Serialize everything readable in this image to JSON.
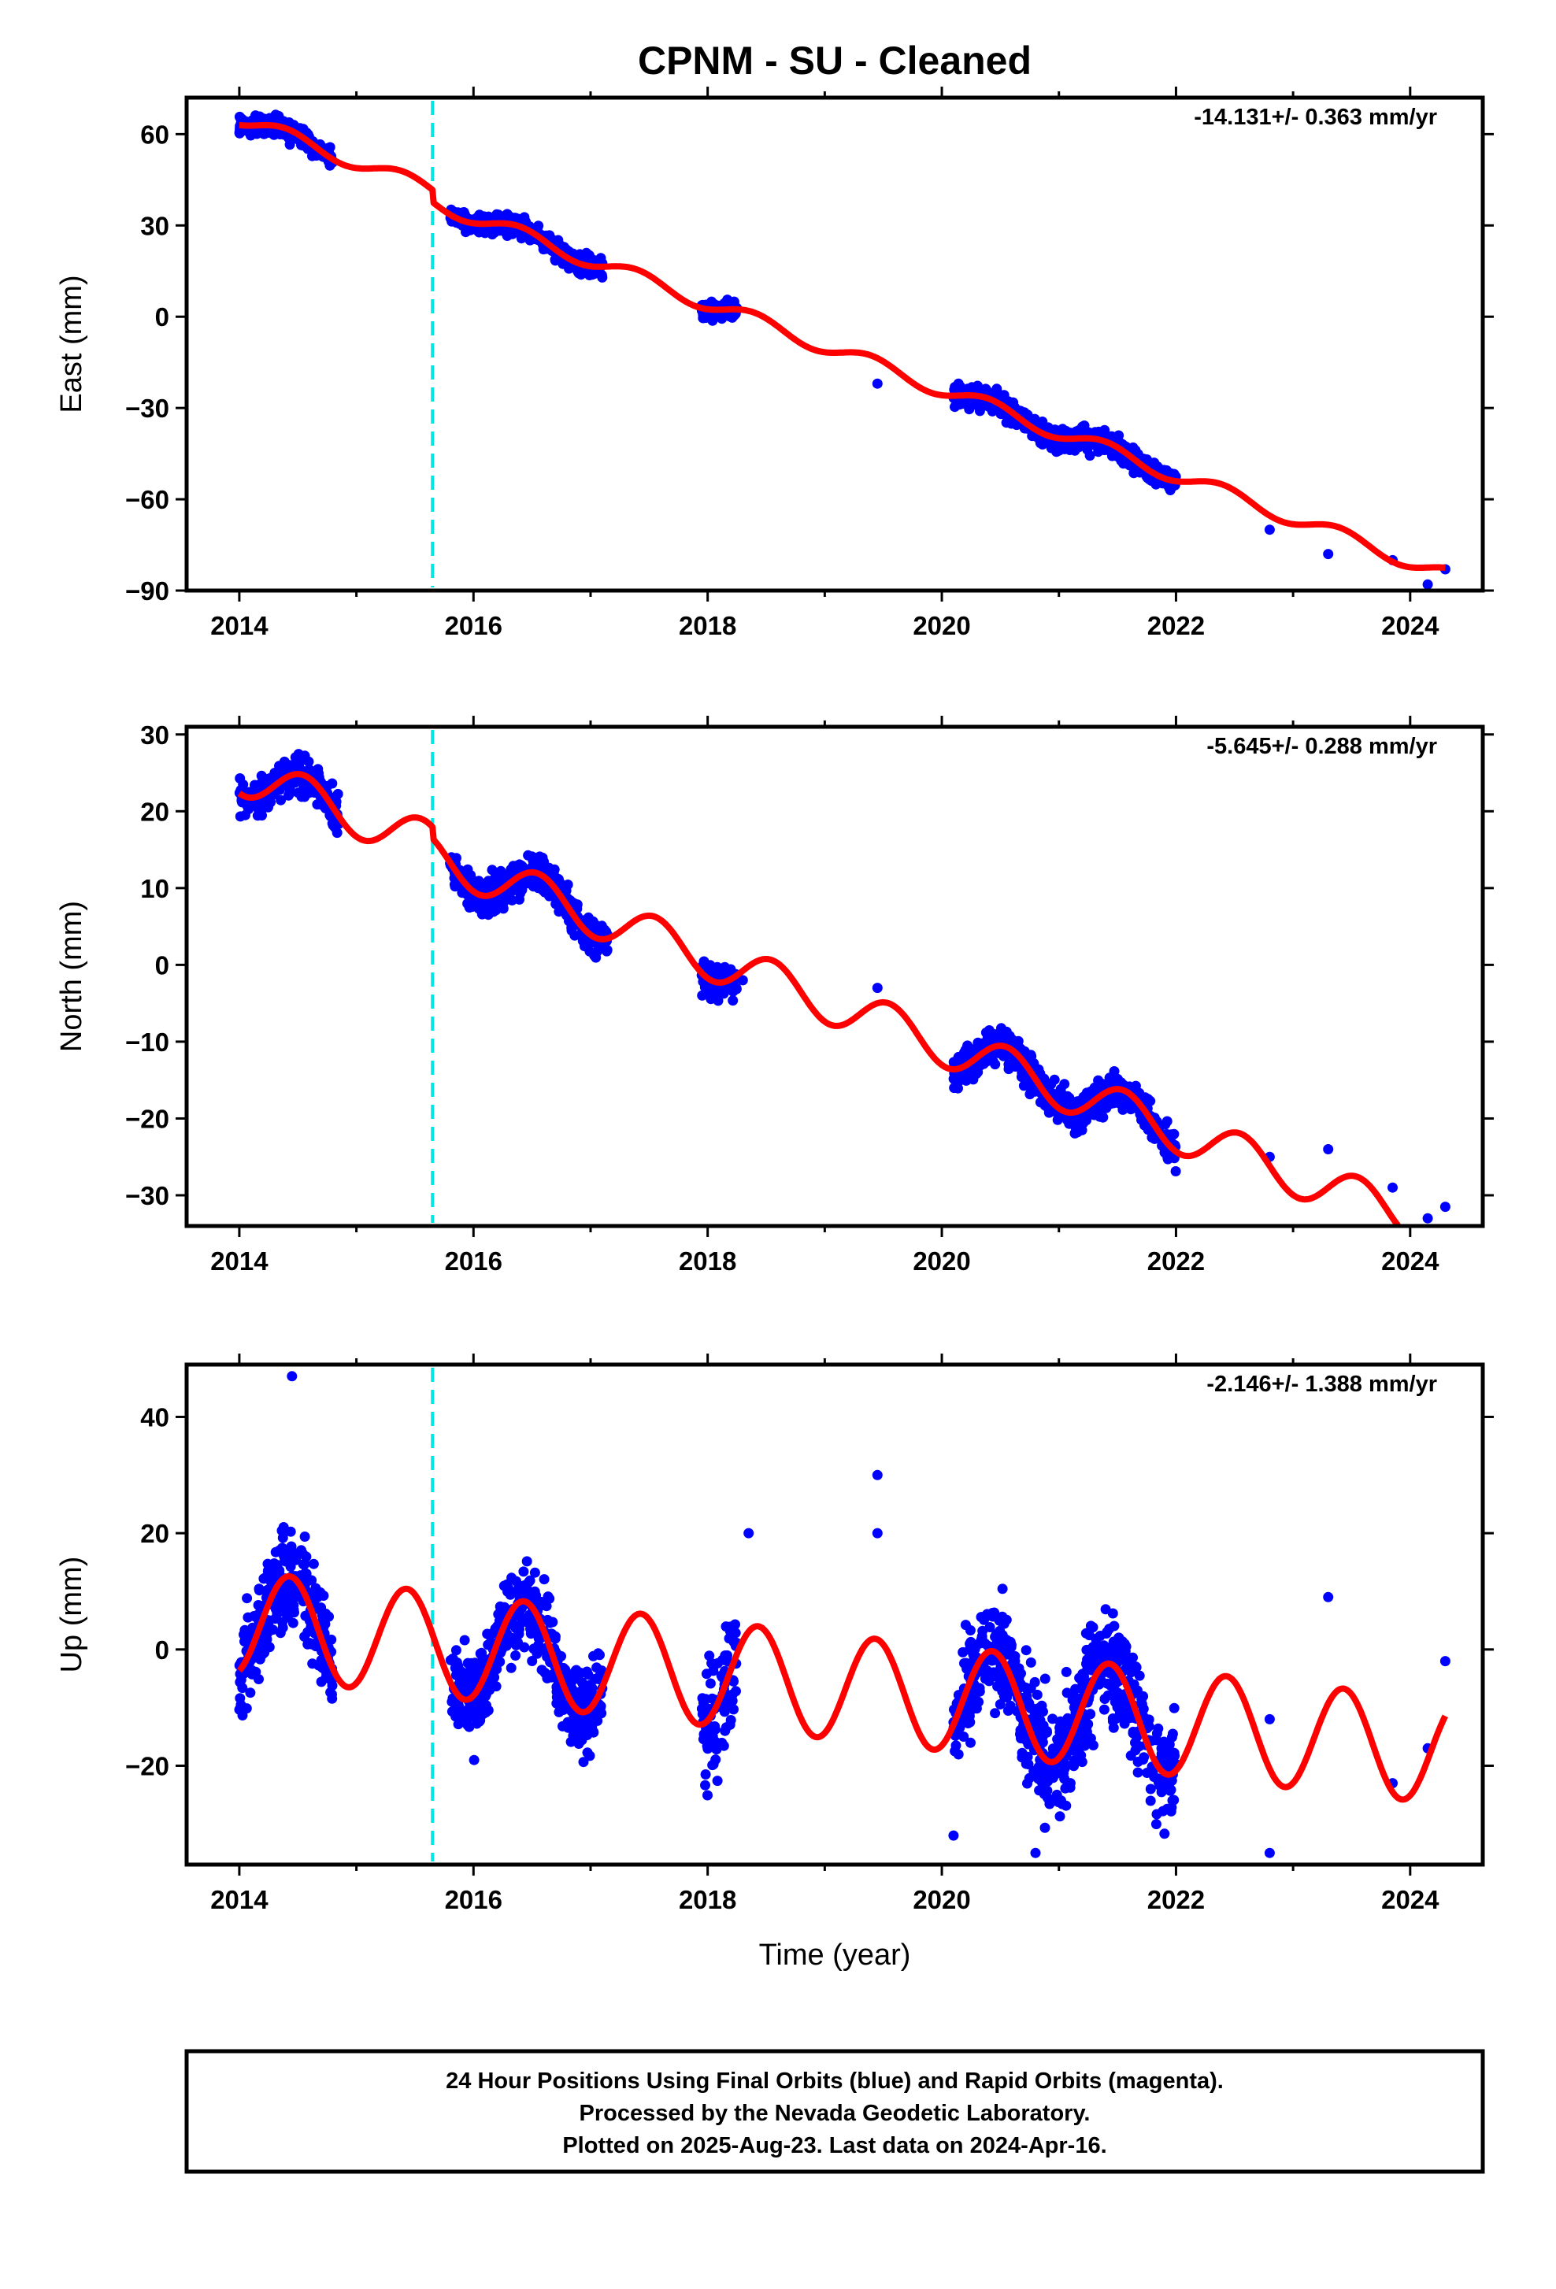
{
  "title": "CPNM  - SU - Cleaned",
  "xlabel": "Time (year)",
  "colors": {
    "data": "#0000ff",
    "model": "#ff0000",
    "break": "#00e5e5",
    "frame": "#000000"
  },
  "footer": {
    "line1": "24 Hour Positions Using Final Orbits (blue) and Rapid Orbits (magenta).",
    "line2": "Processed by the Nevada Geodetic Laboratory.",
    "line3": "Plotted on 2025-Aug-23. Last data on 2024-Apr-16."
  },
  "chart_data": [
    {
      "type": "scatter",
      "ylabel": "East (mm)",
      "rate_label": "-14.131+/- 0.363 mm/yr",
      "xlim": [
        2013.55,
        2024.62
      ],
      "ylim": [
        -90,
        72
      ],
      "xticks": [
        2014,
        2016,
        2018,
        2020,
        2022,
        2024
      ],
      "yticks": [
        60,
        30,
        0,
        -30,
        -60,
        -90
      ],
      "ytick_labels": [
        "60",
        "30",
        "0",
        "−30",
        "−60",
        "−90"
      ],
      "equipment_break": 2015.65,
      "model": {
        "name": "model",
        "rate": -14.131,
        "intercept_2014": 65,
        "annual_amp": 2.5,
        "annual_phase": 0.15,
        "offset_at_break": -4
      },
      "data_clusters": [
        {
          "x": [
            2014.0,
            2014.8
          ],
          "scatter": 2.2
        },
        {
          "x": [
            2015.8,
            2017.1
          ],
          "scatter": 2.2
        },
        {
          "x": [
            2017.95,
            2018.25
          ],
          "scatter": 2.0
        },
        {
          "x": [
            2020.1,
            2022.0
          ],
          "scatter": 2.5
        }
      ],
      "isolated_points": [
        [
          2019.45,
          -22
        ],
        [
          2022.8,
          -70
        ],
        [
          2023.3,
          -78
        ],
        [
          2023.85,
          -80
        ],
        [
          2024.15,
          -88
        ],
        [
          2024.3,
          -83
        ]
      ]
    },
    {
      "type": "scatter",
      "ylabel": "North (mm)",
      "rate_label": "-5.645+/- 0.288 mm/yr",
      "xlim": [
        2013.55,
        2024.62
      ],
      "ylim": [
        -34,
        31
      ],
      "xticks": [
        2014,
        2016,
        2018,
        2020,
        2022,
        2024
      ],
      "yticks": [
        30,
        20,
        10,
        0,
        -10,
        -20,
        -30
      ],
      "ytick_labels": [
        "30",
        "20",
        "10",
        "0",
        "−10",
        "−20",
        "−30"
      ],
      "equipment_break": 2015.65,
      "model": {
        "name": "model",
        "rate": -5.645,
        "intercept_2014": 25,
        "annual_amp": 2.8,
        "annual_phase": 0.3,
        "offset_at_break": -1.5
      },
      "data_clusters": [
        {
          "x": [
            2014.0,
            2014.85
          ],
          "scatter": 1.6
        },
        {
          "x": [
            2015.8,
            2017.15
          ],
          "scatter": 1.6
        },
        {
          "x": [
            2017.95,
            2018.25
          ],
          "scatter": 1.4
        },
        {
          "x": [
            2020.1,
            2022.0
          ],
          "scatter": 1.6
        }
      ],
      "isolated_points": [
        [
          2018.3,
          -2
        ],
        [
          2019.45,
          -3
        ],
        [
          2022.8,
          -25
        ],
        [
          2023.3,
          -24
        ],
        [
          2023.85,
          -29
        ],
        [
          2024.15,
          -33
        ],
        [
          2024.3,
          -31.5
        ]
      ]
    },
    {
      "type": "scatter",
      "ylabel": "Up (mm)",
      "rate_label": "-2.146+/- 1.388 mm/yr",
      "xlim": [
        2013.55,
        2024.62
      ],
      "ylim": [
        -37,
        49
      ],
      "xticks": [
        2014,
        2016,
        2018,
        2020,
        2022,
        2024
      ],
      "yticks": [
        40,
        20,
        0,
        -20
      ],
      "ytick_labels": [
        "40",
        "20",
        "0",
        "−20"
      ],
      "equipment_break": 2015.65,
      "model": {
        "name": "model",
        "rate": -2.146,
        "intercept_2014": 4.5,
        "annual_amp": 9,
        "annual_phase": 0.18,
        "offset_at_break": 0
      },
      "data_clusters": [
        {
          "x": [
            2014.0,
            2014.8
          ],
          "scatter": 5.5
        },
        {
          "x": [
            2015.8,
            2017.1
          ],
          "scatter": 5.0
        },
        {
          "x": [
            2017.95,
            2018.25
          ],
          "scatter": 7.0
        },
        {
          "x": [
            2020.1,
            2022.0
          ],
          "scatter": 6.5
        }
      ],
      "isolated_points": [
        [
          2014.45,
          47
        ],
        [
          2018.35,
          20
        ],
        [
          2019.45,
          30
        ],
        [
          2019.45,
          20
        ],
        [
          2020.1,
          -32
        ],
        [
          2020.8,
          -35
        ],
        [
          2022.8,
          -35
        ],
        [
          2022.8,
          -12
        ],
        [
          2023.3,
          9
        ],
        [
          2023.85,
          -23
        ],
        [
          2024.15,
          -17
        ],
        [
          2024.3,
          -2
        ]
      ]
    }
  ]
}
